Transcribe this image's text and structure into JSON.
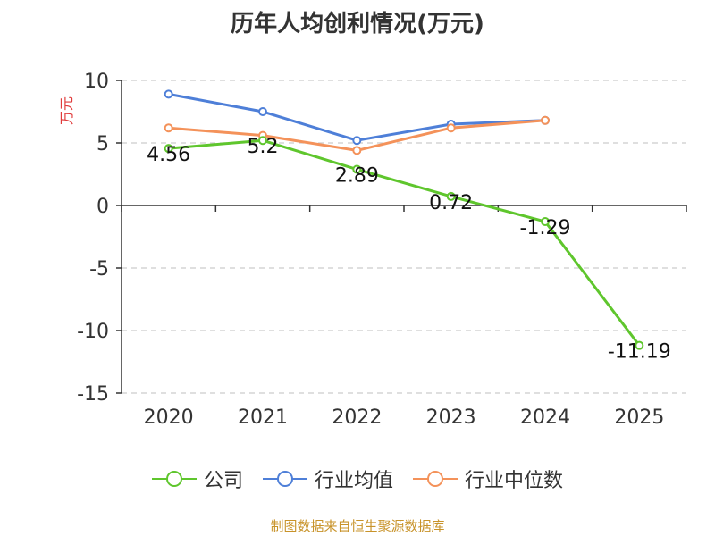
{
  "chart_data": {
    "type": "line",
    "title": "历年人均创利情况(万元)",
    "ylabel": "万元",
    "categories": [
      "2020",
      "2021",
      "2022",
      "2023",
      "2024",
      "2025"
    ],
    "ylim": [
      -15,
      10
    ],
    "yticks": [
      10,
      5,
      0,
      -5,
      -10,
      -15
    ],
    "grid": true,
    "legend_position": "bottom",
    "series": [
      {
        "name": "公司",
        "color": "#5fc62d",
        "values": [
          4.56,
          5.2,
          2.89,
          0.72,
          -1.29,
          -11.19
        ],
        "labels": [
          "4.56",
          "5.2",
          "2.89",
          "0.72",
          "-1.29",
          "-11.19"
        ]
      },
      {
        "name": "行业均值",
        "color": "#4e7fd8",
        "values": [
          8.9,
          7.5,
          5.2,
          6.5,
          6.8,
          null
        ]
      },
      {
        "name": "行业中位数",
        "color": "#f4925a",
        "values": [
          6.2,
          5.6,
          4.4,
          6.2,
          6.8,
          null
        ]
      }
    ]
  },
  "source": "制图数据来自恒生聚源数据库"
}
